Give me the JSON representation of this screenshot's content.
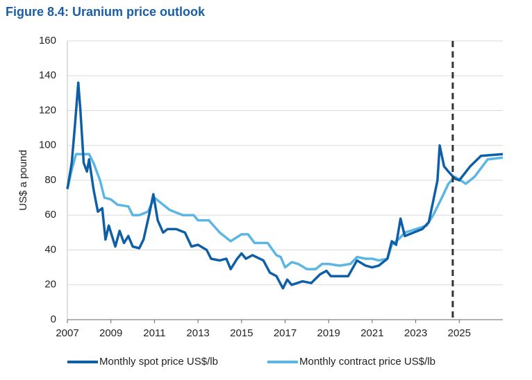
{
  "chart_data": {
    "type": "line",
    "title": "Figure 8.4: Uranium price outlook",
    "ylabel": "US$ a pound",
    "xlim": [
      2007,
      2027
    ],
    "xticks": [
      2007,
      2009,
      2011,
      2013,
      2015,
      2017,
      2019,
      2021,
      2023,
      2025
    ],
    "ylim": [
      0,
      160
    ],
    "yticks": [
      0,
      20,
      40,
      60,
      80,
      100,
      120,
      140,
      160
    ],
    "grid": true,
    "vline": 2024.7,
    "legend": "bottom",
    "series": [
      {
        "name": "Monthly spot price US$/lb",
        "color": "#0f5fa6",
        "x": [
          2007.0,
          2007.2,
          2007.35,
          2007.5,
          2007.6,
          2007.75,
          2007.9,
          2008.0,
          2008.2,
          2008.4,
          2008.6,
          2008.75,
          2008.9,
          2009.2,
          2009.4,
          2009.6,
          2009.8,
          2010.0,
          2010.3,
          2010.5,
          2010.75,
          2010.95,
          2011.15,
          2011.4,
          2011.6,
          2012.0,
          2012.4,
          2012.7,
          2013.0,
          2013.4,
          2013.6,
          2014.0,
          2014.3,
          2014.5,
          2014.8,
          2015.0,
          2015.2,
          2015.5,
          2016.0,
          2016.3,
          2016.6,
          2016.9,
          2017.1,
          2017.3,
          2017.8,
          2018.2,
          2018.6,
          2018.9,
          2019.1,
          2019.5,
          2019.9,
          2020.3,
          2020.7,
          2021.0,
          2021.3,
          2021.7,
          2021.9,
          2022.1,
          2022.3,
          2022.5,
          2022.9,
          2023.3,
          2023.6,
          2023.8,
          2024.0,
          2024.1,
          2024.3,
          2024.5,
          2024.8,
          2025.0,
          2025.5,
          2026.0,
          2027.0
        ],
        "values": [
          75,
          90,
          112,
          136,
          120,
          90,
          85,
          92,
          75,
          62,
          64,
          46,
          54,
          42,
          51,
          44,
          48,
          42,
          41,
          46,
          60,
          72,
          57,
          50,
          52,
          52,
          50,
          42,
          43,
          40,
          35,
          34,
          35,
          29,
          35,
          38,
          35,
          37,
          34,
          27,
          25,
          18,
          23,
          20,
          22,
          21,
          26,
          28,
          25,
          25,
          25,
          34,
          31,
          30,
          31,
          35,
          45,
          43,
          58,
          48,
          50,
          52,
          56,
          68,
          80,
          100,
          88,
          85,
          81,
          80,
          88,
          94,
          95
        ]
      },
      {
        "name": "Monthly contract price US$/lb",
        "color": "#5cb6e4",
        "x": [
          2007.0,
          2007.2,
          2007.4,
          2008.0,
          2008.2,
          2008.5,
          2008.7,
          2009.0,
          2009.3,
          2009.8,
          2010.0,
          2010.3,
          2010.7,
          2011.0,
          2011.3,
          2011.7,
          2012.3,
          2012.8,
          2013.0,
          2013.5,
          2014.0,
          2014.5,
          2015.0,
          2015.3,
          2015.6,
          2016.2,
          2016.6,
          2016.8,
          2017.0,
          2017.3,
          2017.6,
          2018.0,
          2018.4,
          2018.7,
          2019.0,
          2019.5,
          2020.0,
          2020.3,
          2020.7,
          2021.0,
          2021.3,
          2021.7,
          2021.9,
          2022.2,
          2022.5,
          2023.0,
          2023.5,
          2023.8,
          2024.2,
          2024.5,
          2024.8,
          2025.3,
          2025.7,
          2026.3,
          2027.0
        ],
        "values": [
          75,
          86,
          95,
          95,
          90,
          80,
          70,
          69,
          66,
          65,
          60,
          60,
          62,
          70,
          67,
          63,
          60,
          60,
          57,
          57,
          50,
          45,
          49,
          49,
          44,
          44,
          37,
          36,
          30,
          33,
          32,
          29,
          29,
          32,
          32,
          31,
          32,
          36,
          35,
          35,
          34,
          35,
          43,
          46,
          50,
          52,
          54,
          60,
          70,
          78,
          82,
          78,
          82,
          92,
          93
        ]
      }
    ]
  }
}
